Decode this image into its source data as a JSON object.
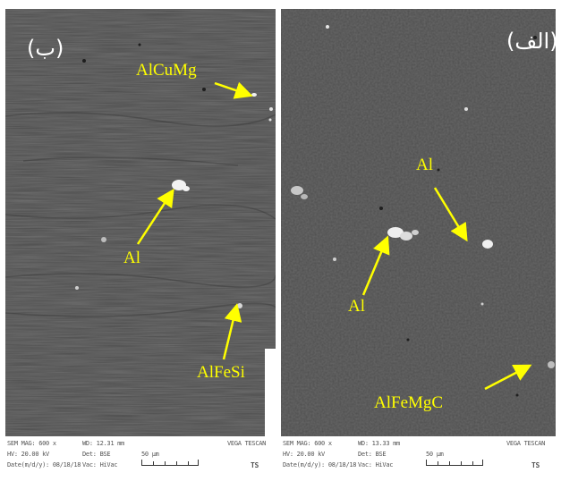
{
  "panels": [
    {
      "label": "(ب)",
      "phases": [
        "AlCuMg",
        "Al",
        "AlFeSi"
      ],
      "footer": {
        "sem_mag": "SEM MAG: 600 x",
        "hv": "HV: 20.00 kV",
        "date": "Date(m/d/y): 08/18/18",
        "wd": "WD: 12.31 mm",
        "det": "Det: BSE",
        "vac": "Vac: HiVac",
        "scale": "50 μm",
        "brand": "VEGA TESCAN",
        "logo": "TS"
      }
    },
    {
      "label": "(الف)",
      "phases": [
        "Al",
        "Al",
        "AlFeMgC"
      ],
      "footer": {
        "sem_mag": "SEM MAG: 600 x",
        "hv": "HV: 20.00 kV",
        "date": "Date(m/d/y): 08/18/18",
        "wd": "WD: 13.33 mm",
        "det": "Det: BSE",
        "vac": "Vac: HiVac",
        "scale": "50 μm",
        "brand": "VEGA TESCAN",
        "logo": "TS"
      }
    }
  ],
  "colors": {
    "annotation": "#ffff00",
    "panel_label": "#ffffff",
    "background_grey": "#4a4a4a"
  }
}
